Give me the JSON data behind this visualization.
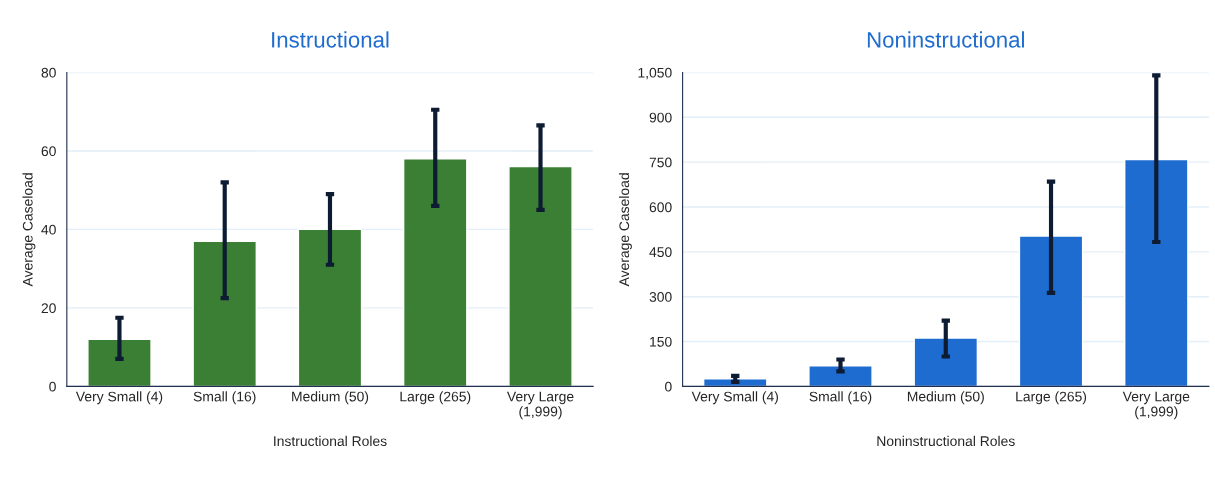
{
  "chart_data": [
    {
      "type": "bar",
      "title": "Instructional",
      "xlabel": "Instructional Roles",
      "ylabel": "Average Caseload",
      "categories": [
        "Very Small (4)",
        "Small (16)",
        "Medium (50)",
        "Large (265)",
        "Very Large\n(1,999)"
      ],
      "series": [
        {
          "color": "#3b7f34",
          "values": [
            12,
            37,
            40,
            58,
            56
          ],
          "errors": [
            [
              7,
              17.5
            ],
            [
              22.5,
              52
            ],
            [
              31,
              49
            ],
            [
              46,
              70.5
            ],
            [
              45,
              66.5
            ]
          ]
        }
      ],
      "ylim": [
        0,
        80
      ],
      "yticks": [
        0,
        20,
        40,
        60,
        80
      ],
      "grid": "y"
    },
    {
      "type": "bar",
      "title": "Noninstructional",
      "xlabel": "Noninstructional Roles",
      "ylabel": "Average Caseload",
      "categories": [
        "Very Small (4)",
        "Small (16)",
        "Medium (50)",
        "Large (265)",
        "Very Large\n(1,999)"
      ],
      "series": [
        {
          "color": "#1e6ccf",
          "values": [
            25,
            69,
            162,
            503,
            759
          ],
          "errors": [
            [
              15,
              35
            ],
            [
              50,
              90
            ],
            [
              100,
              220
            ],
            [
              313,
              685
            ],
            [
              483,
              1040
            ]
          ]
        }
      ],
      "ylim": [
        0,
        1050
      ],
      "yticks": [
        0,
        150,
        300,
        450,
        600,
        750,
        900,
        {
          "value": 1050,
          "label": "1,050"
        }
      ],
      "grid": "y"
    }
  ]
}
